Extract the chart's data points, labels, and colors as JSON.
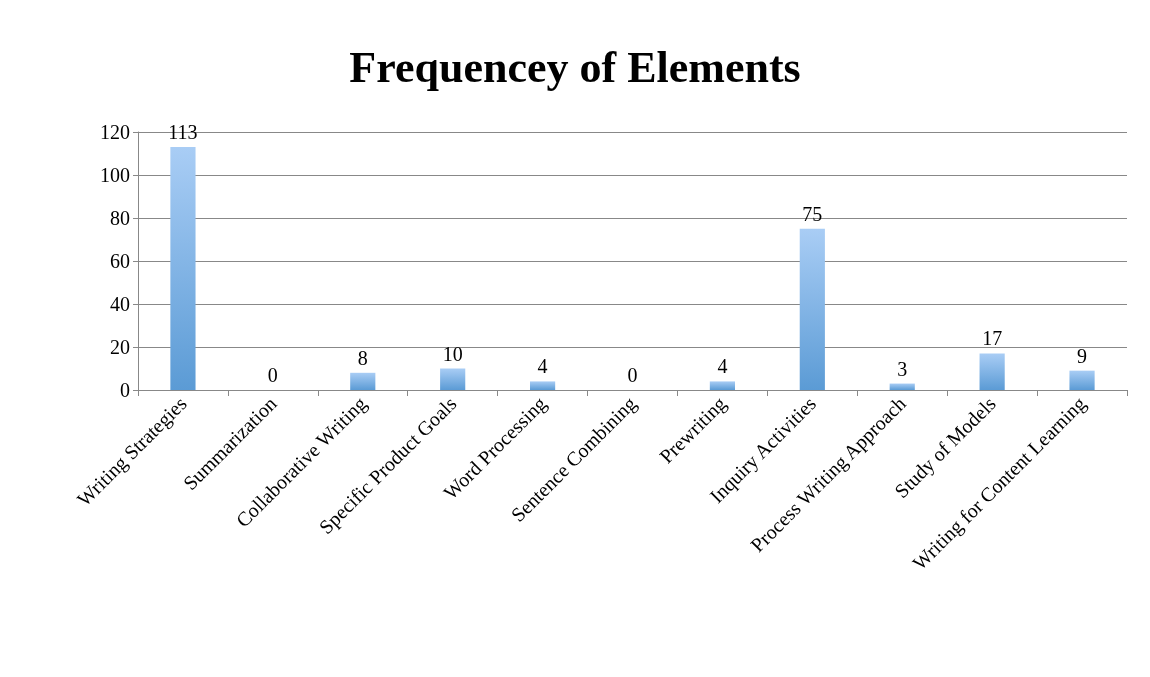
{
  "chart_data": {
    "type": "bar",
    "title": "Frequencey of Elements",
    "categories": [
      "Writing Strategies",
      "Summarization",
      "Collaborative Writing",
      "Specific Product Goals",
      "Word Processing",
      "Sentence Combining",
      "Prewriting",
      "Inquiry Activities",
      "Process Writing Approach",
      "Study of Models",
      "Writing for Content Learning"
    ],
    "values": [
      113,
      0,
      8,
      10,
      4,
      0,
      4,
      75,
      3,
      17,
      9
    ],
    "color": "#5b9bd5",
    "ylim": [
      0,
      120
    ],
    "yticks": [
      0,
      20,
      40,
      60,
      80,
      100,
      120
    ],
    "grid": "y",
    "data_labels": true
  }
}
